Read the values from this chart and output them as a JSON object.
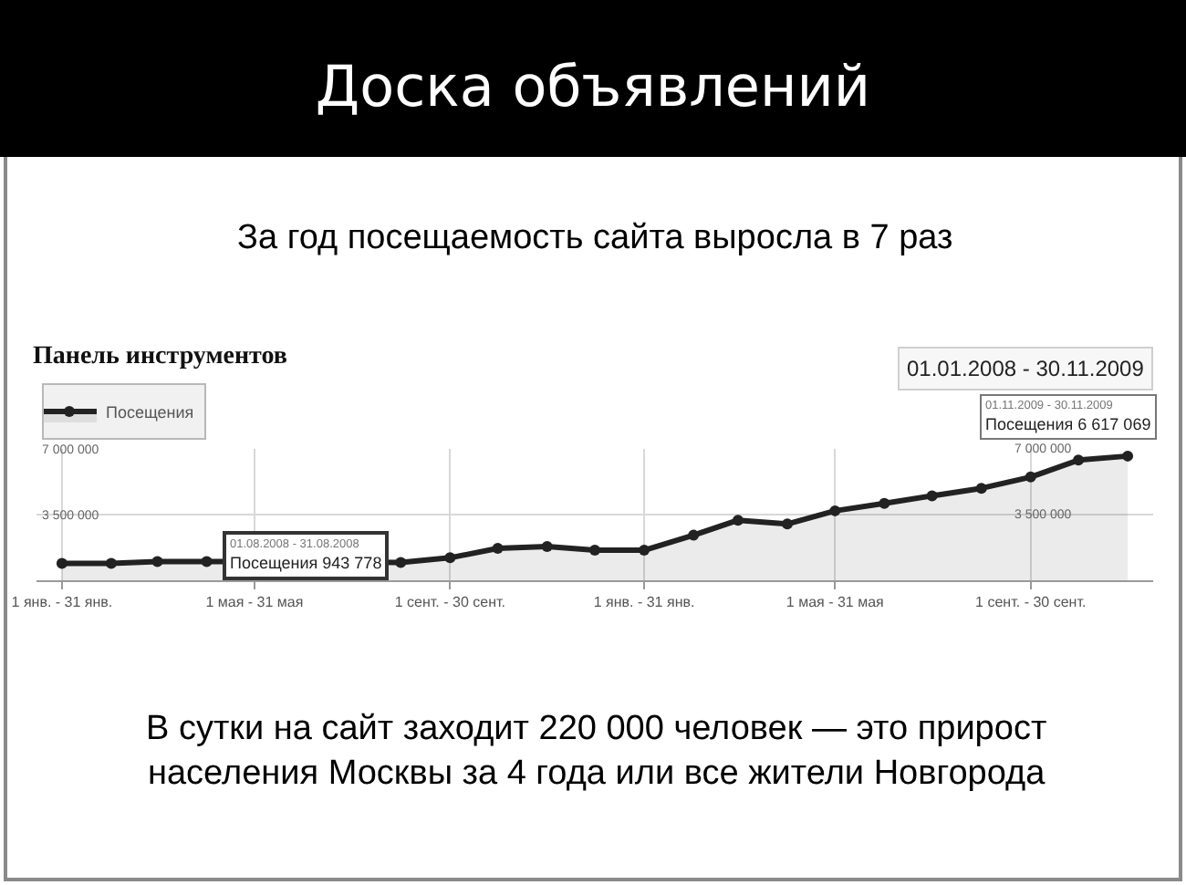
{
  "chart_data": {
    "type": "area",
    "title": "Доска объявлений",
    "subtitle": "За год посещаемость сайта выросла в 7 раз",
    "x": [
      "2008-01",
      "2008-02",
      "2008-03",
      "2008-04",
      "2008-05",
      "2008-06",
      "2008-07",
      "2008-08",
      "2008-09",
      "2008-10",
      "2008-11",
      "2008-12",
      "2009-01",
      "2009-02",
      "2009-03",
      "2009-04",
      "2009-05",
      "2009-06",
      "2009-07",
      "2009-08",
      "2009-09",
      "2009-10",
      "2009-11"
    ],
    "series": [
      {
        "name": "Посещения",
        "color": "#222222",
        "values": [
          900000,
          900000,
          1000000,
          1000000,
          null,
          null,
          null,
          943778,
          1200000,
          1700000,
          1800000,
          1600000,
          1600000,
          2400000,
          3200000,
          3000000,
          3700000,
          4100000,
          4500000,
          4900000,
          5500000,
          6400000,
          6617069
        ]
      }
    ],
    "xlim": [
      "2007-12-16",
      "2009-11-17"
    ],
    "xticks": [
      {
        "value": "2008-01",
        "label": "1 янв. - 31 янв."
      },
      {
        "value": "2008-05",
        "label": "1 мая - 31 мая"
      },
      {
        "value": "2008-09",
        "label": "1 сент. - 30 сент."
      },
      {
        "value": "2009-01",
        "label": "1 янв. - 31 янв."
      },
      {
        "value": "2009-05",
        "label": "1 мая - 31 мая"
      },
      {
        "value": "2009-09",
        "label": "1 сент. - 30 сент."
      }
    ],
    "ylim": [
      0,
      7000000
    ],
    "yticks": [
      {
        "value": 3500000,
        "label": "3 500 000"
      },
      {
        "value": 7000000,
        "label": "7 000 000"
      }
    ],
    "y2lim": [
      0,
      7000000
    ],
    "y2ticks": [
      {
        "value": 3500000,
        "label": "3 500 000"
      },
      {
        "value": 7000000,
        "label": "7 000 000"
      }
    ],
    "grid": true,
    "legend": "top left",
    "marker": "circle",
    "annotations": [
      "Панель инструментов",
      "01.01.2008 - 30.11.2009",
      {
        "text": "01.08.2008 - 31.08.2008\nПосещения 943 778",
        "x": "2008-08",
        "y": 943778
      },
      {
        "text": "01.11.2009 - 30.11.2009\nПосещения 6 617 069",
        "x": "2009-11",
        "y": 6617069
      },
      "В сутки на сайт заходит 220 000 человек — это прирост\nнаселения Москвы за 4 года или все жители Новгорода"
    ]
  }
}
